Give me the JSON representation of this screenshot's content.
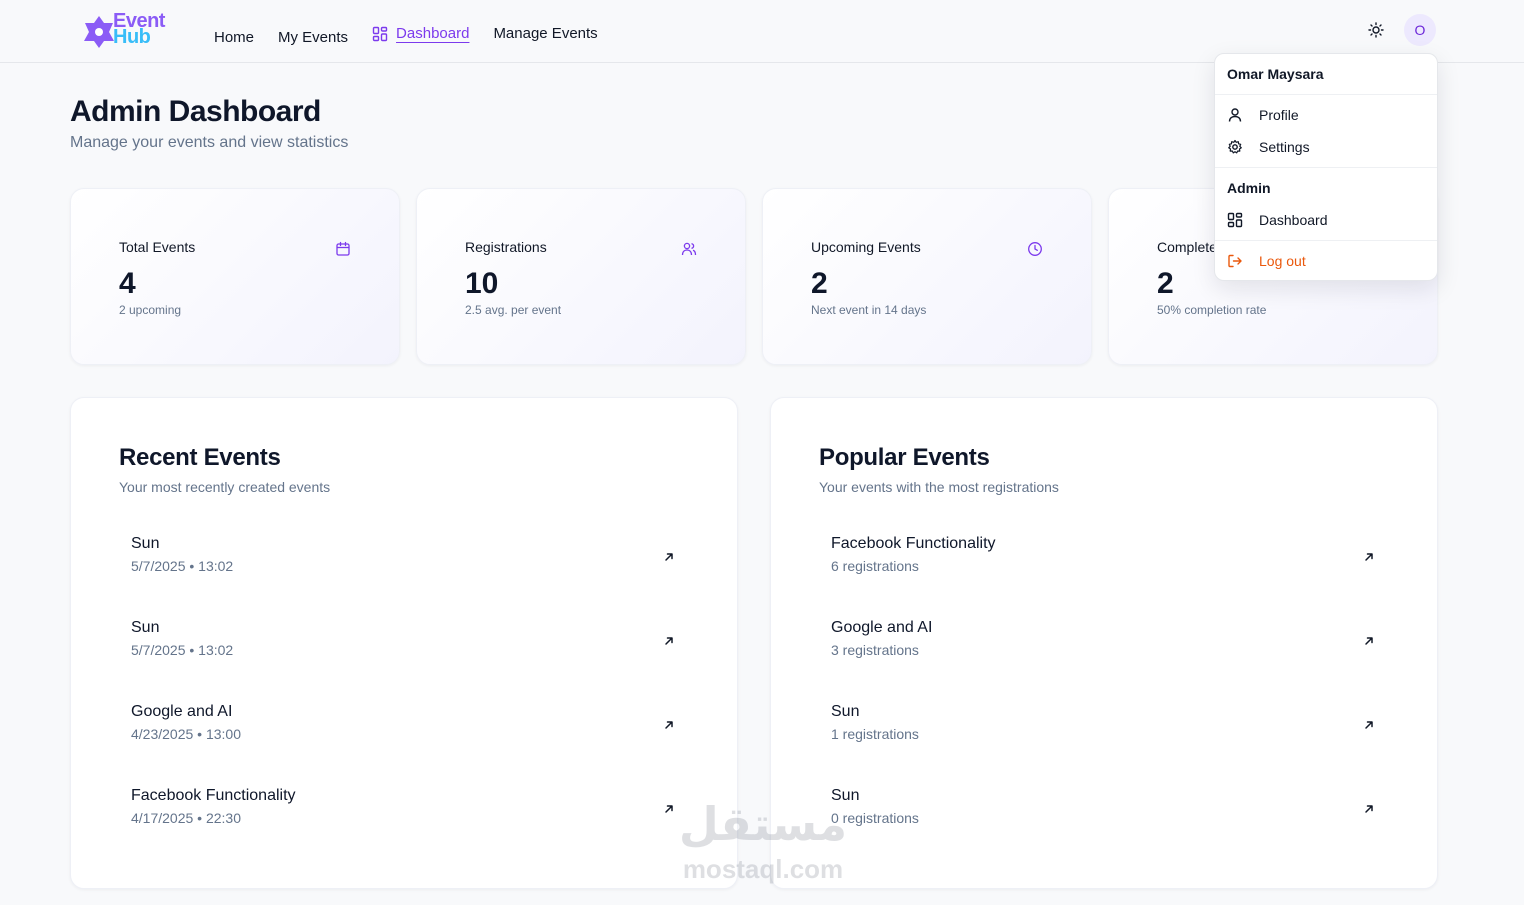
{
  "brand": {
    "line1": "Event",
    "line2": "Hub"
  },
  "nav": {
    "home": "Home",
    "my_events": "My Events",
    "dashboard": "Dashboard",
    "manage_events": "Manage Events"
  },
  "user": {
    "avatar_initial": "O",
    "name": "Omar Maysara"
  },
  "page": {
    "title": "Admin Dashboard",
    "subtitle": "Manage your events and view statistics"
  },
  "stats": [
    {
      "label": "Total Events",
      "value": "4",
      "note": "2 upcoming",
      "icon": "calendar-icon"
    },
    {
      "label": "Registrations",
      "value": "10",
      "note": "2.5 avg. per event",
      "icon": "users-icon"
    },
    {
      "label": "Upcoming Events",
      "value": "2",
      "note": "Next event in 14 days",
      "icon": "clock-icon"
    },
    {
      "label": "Completed Events",
      "value": "2",
      "note": "50% completion rate",
      "icon": "check-icon"
    }
  ],
  "recent": {
    "title": "Recent Events",
    "subtitle": "Your most recently created events",
    "items": [
      {
        "title": "Sun",
        "meta": "5/7/2025 • 13:02"
      },
      {
        "title": "Sun",
        "meta": "5/7/2025 • 13:02"
      },
      {
        "title": "Google and AI",
        "meta": "4/23/2025 • 13:00"
      },
      {
        "title": "Facebook Functionality",
        "meta": "4/17/2025 • 22:30"
      }
    ]
  },
  "popular": {
    "title": "Popular Events",
    "subtitle": "Your events with the most registrations",
    "items": [
      {
        "title": "Facebook Functionality",
        "meta": "6 registrations"
      },
      {
        "title": "Google and AI",
        "meta": "3 registrations"
      },
      {
        "title": "Sun",
        "meta": "1 registrations"
      },
      {
        "title": "Sun",
        "meta": "0 registrations"
      }
    ]
  },
  "dropdown": {
    "profile": "Profile",
    "settings": "Settings",
    "section_admin": "Admin",
    "dashboard": "Dashboard",
    "logout": "Log out"
  },
  "watermark": {
    "arabic": "مستقل",
    "latin": "mostaql.com"
  },
  "colors": {
    "accent": "#7c3aed",
    "logout": "#ea580c",
    "muted": "#64748b"
  }
}
